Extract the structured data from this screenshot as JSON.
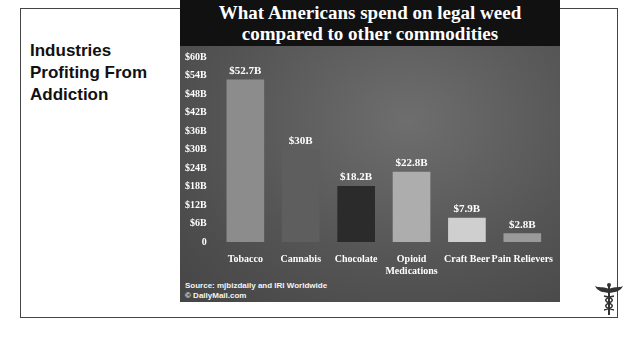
{
  "slide": {
    "heading": "Industries Profiting From Addiction"
  },
  "chart_data": {
    "type": "bar",
    "title": "What Americans spend on legal weed compared to other commodities",
    "categories": [
      "Tobacco",
      "Cannabis",
      "Chocolate",
      "Opioid Medications",
      "Craft Beer",
      "Pain Relievers"
    ],
    "values": [
      52.7,
      30,
      18.2,
      22.8,
      7.9,
      2.8
    ],
    "value_labels": [
      "$52.7B",
      "$30B",
      "$18.2B",
      "$22.8B",
      "$7.9B",
      "$2.8B"
    ],
    "colors": [
      "#8c8c8c",
      "#5e5e5e",
      "#2b2b2b",
      "#adadad",
      "#cfcfcf",
      "#9a9a9a"
    ],
    "ylim": [
      0,
      60
    ],
    "yticks": [
      0,
      {
        "value": 6,
        "label": "$6B"
      },
      {
        "value": 12,
        "label": "$12B"
      },
      {
        "value": 18,
        "label": "$18B"
      },
      {
        "value": 24,
        "label": "$24B"
      },
      {
        "value": 30,
        "label": "$30B"
      },
      {
        "value": 36,
        "label": "$36B"
      },
      {
        "value": 42,
        "label": "$42B"
      },
      {
        "value": 48,
        "label": "$48B"
      },
      {
        "value": 54,
        "label": "$54B"
      },
      {
        "value": 60,
        "label": "$60B"
      }
    ],
    "grid": false,
    "data_labels": true,
    "annotations": [
      "Source: mjbizdaily and IRI Worldwide",
      "© DailyMail.com"
    ]
  }
}
